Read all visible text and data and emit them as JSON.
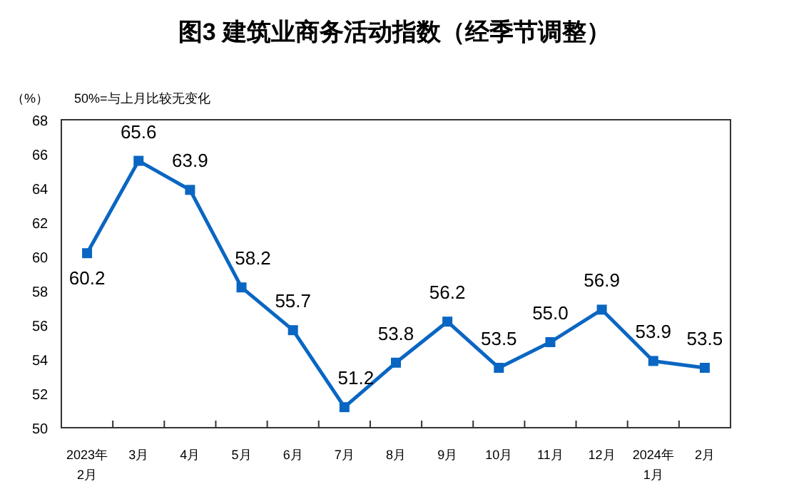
{
  "chart_data": {
    "type": "line",
    "title": "图3  建筑业商务活动指数（经季节调整）",
    "ylabel": "（%）",
    "annotations": [
      "50%=与上月比较无变化"
    ],
    "categories": [
      "2023年\n2月",
      "3月",
      "4月",
      "5月",
      "6月",
      "7月",
      "8月",
      "9月",
      "10月",
      "11月",
      "12月",
      "2024年\n1月",
      "2月"
    ],
    "series": [
      {
        "color": "#0a66c2",
        "values": [
          60.2,
          65.6,
          63.9,
          58.2,
          55.7,
          51.2,
          53.8,
          56.2,
          53.5,
          55.0,
          56.9,
          53.9,
          53.5
        ]
      }
    ],
    "value_labels": [
      "60.2",
      "65.6",
      "63.9",
      "58.2",
      "55.7",
      "51.2",
      "53.8",
      "56.2",
      "53.5",
      "55.0",
      "56.9",
      "53.9",
      "53.5"
    ],
    "ylim": [
      50,
      68
    ],
    "yticks": [
      50,
      52,
      54,
      56,
      58,
      60,
      62,
      64,
      66,
      68
    ],
    "marker": "square",
    "line_style": "solid",
    "grid": false
  }
}
